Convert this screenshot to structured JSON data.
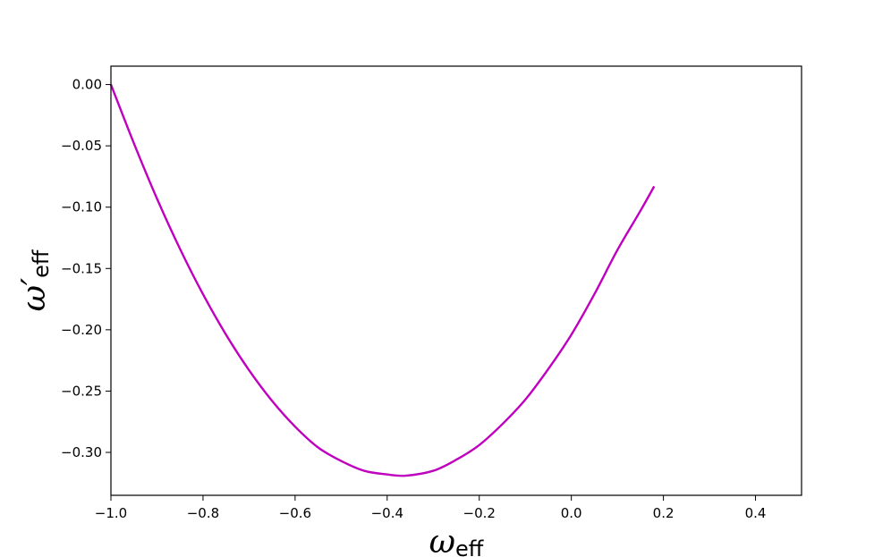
{
  "chart_data": {
    "type": "line",
    "title": "",
    "xlabel": {
      "main": "ω",
      "sub": "eff"
    },
    "ylabel": {
      "main": "ω′",
      "sub": "eff"
    },
    "xlim": [
      -1.0,
      0.5
    ],
    "ylim": [
      -0.335,
      0.015
    ],
    "xticks": [
      -1.0,
      -0.8,
      -0.6,
      -0.4,
      -0.2,
      0.0,
      0.2,
      0.4
    ],
    "xtick_labels": [
      "−1.0",
      "−0.8",
      "−0.6",
      "−0.4",
      "−0.2",
      "0.0",
      "0.2",
      "0.4"
    ],
    "yticks": [
      0.0,
      -0.05,
      -0.1,
      -0.15,
      -0.2,
      -0.25,
      -0.3
    ],
    "ytick_labels": [
      "0.00",
      "−0.05",
      "−0.10",
      "−0.15",
      "−0.20",
      "−0.25",
      "−0.30"
    ],
    "grid": false,
    "series": [
      {
        "color": "#bf00bf",
        "x": [
          -1.0,
          -0.95,
          -0.9,
          -0.85,
          -0.8,
          -0.75,
          -0.7,
          -0.65,
          -0.6,
          -0.55,
          -0.5,
          -0.45,
          -0.4,
          -0.36,
          -0.3,
          -0.25,
          -0.2,
          -0.15,
          -0.1,
          -0.05,
          0.0,
          0.05,
          0.1,
          0.15,
          0.18
        ],
        "y": [
          0.0,
          -0.048,
          -0.093,
          -0.134,
          -0.171,
          -0.204,
          -0.233,
          -0.258,
          -0.279,
          -0.296,
          -0.307,
          -0.315,
          -0.318,
          -0.319,
          -0.315,
          -0.306,
          -0.294,
          -0.277,
          -0.257,
          -0.232,
          -0.204,
          -0.171,
          -0.135,
          -0.103,
          -0.083
        ]
      }
    ]
  }
}
